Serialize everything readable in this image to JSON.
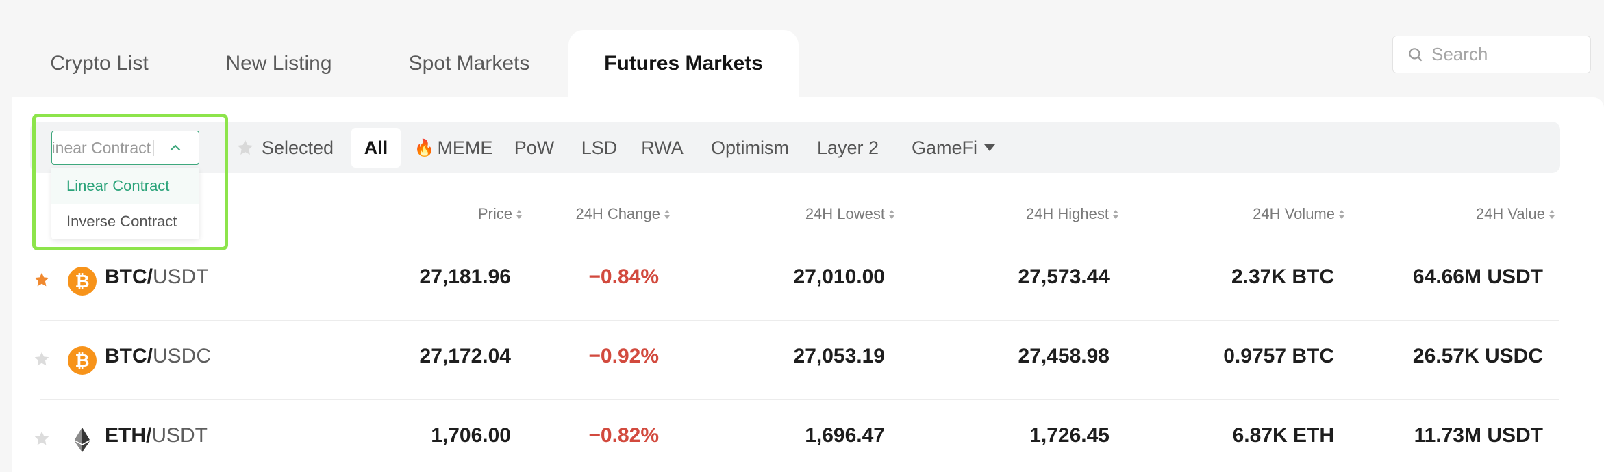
{
  "tabs": {
    "crypto_list": "Crypto List",
    "new_listing": "New Listing",
    "spot_markets": "Spot Markets",
    "futures_markets": "Futures Markets",
    "active": "Futures Markets"
  },
  "search": {
    "placeholder": "Search"
  },
  "contract_select": {
    "value": "Linear Contract",
    "options": [
      "Linear Contract",
      "Inverse Contract"
    ]
  },
  "filters": {
    "selected": "Selected",
    "all": "All",
    "meme": "MEME",
    "pow": "PoW",
    "lsd": "LSD",
    "rwa": "RWA",
    "optimism": "Optimism",
    "layer2": "Layer 2",
    "gamefi": "GameFi",
    "active": "All"
  },
  "columns": {
    "price": "Price",
    "change": "24H Change",
    "lowest": "24H Lowest",
    "highest": "24H Highest",
    "volume": "24H Volume",
    "value": "24H Value"
  },
  "rows": [
    {
      "base": "BTC",
      "sep": "/",
      "quote": "USDT",
      "favorite": true,
      "icon": "bitcoin-icon",
      "price": "27,181.96",
      "change": "−0.84%",
      "lowest": "27,010.00",
      "highest": "27,573.44",
      "volume": "2.37K BTC",
      "value": "64.66M USDT"
    },
    {
      "base": "BTC",
      "sep": "/",
      "quote": "USDC",
      "favorite": false,
      "icon": "bitcoin-icon",
      "price": "27,172.04",
      "change": "−0.92%",
      "lowest": "27,053.19",
      "highest": "27,458.98",
      "volume": "0.9757 BTC",
      "value": "26.57K USDC"
    },
    {
      "base": "ETH",
      "sep": "/",
      "quote": "USDT",
      "favorite": false,
      "icon": "ethereum-icon",
      "price": "1,706.00",
      "change": "−0.82%",
      "lowest": "1,696.47",
      "highest": "1,726.45",
      "volume": "6.87K ETH",
      "value": "11.73M USDT"
    }
  ],
  "colors": {
    "accent_green": "#2ba37a",
    "negative_red": "#d24a3e",
    "favorite_orange": "#f0892f",
    "highlight_green": "#8de44b",
    "bitcoin_orange": "#f7931a"
  }
}
